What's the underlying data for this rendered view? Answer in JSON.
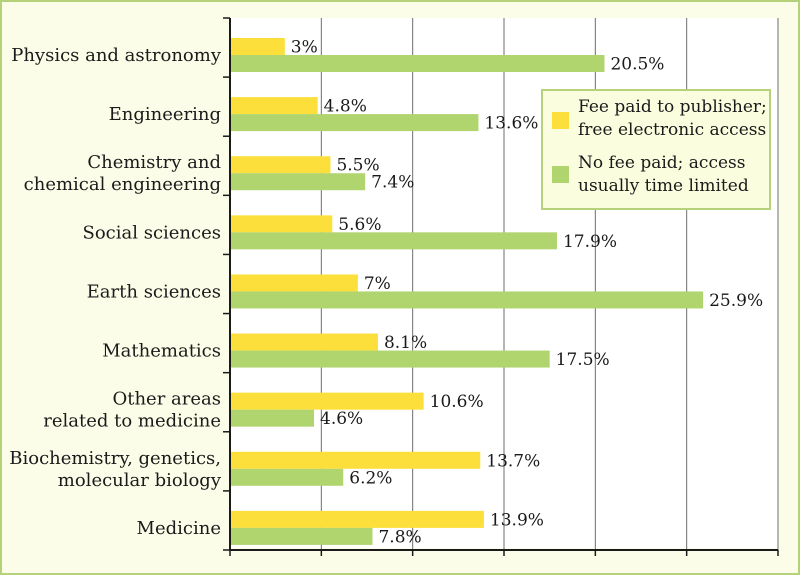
{
  "chart_data": {
    "type": "bar",
    "orientation": "horizontal",
    "title": "",
    "xlabel": "",
    "ylabel": "",
    "xlim": [
      0,
      30
    ],
    "grid": true,
    "value_suffix": "%",
    "categories": [
      [
        "Physics and astronomy"
      ],
      [
        "Engineering"
      ],
      [
        "Chemistry and",
        "chemical engineering"
      ],
      [
        "Social sciences"
      ],
      [
        "Earth sciences"
      ],
      [
        "Mathematics"
      ],
      [
        "Other areas",
        "related to medicine"
      ],
      [
        "Biochemistry, genetics,",
        "molecular biology"
      ],
      [
        "Medicine"
      ]
    ],
    "series": [
      {
        "name": "Fee paid to publisher; free electronic access",
        "legend_lines": [
          "Fee paid to publisher;",
          "free electronic access"
        ],
        "color": "#fcdf3a",
        "values": [
          3,
          4.8,
          5.5,
          5.6,
          7,
          8.1,
          10.6,
          13.7,
          13.9
        ],
        "labels": [
          "3%",
          "4.8%",
          "5.5%",
          "5.6%",
          "7%",
          "8.1%",
          "10.6%",
          "13.7%",
          "13.9%"
        ]
      },
      {
        "name": "No fee paid; access usually time limited",
        "legend_lines": [
          "No fee paid; access",
          "usually time limited"
        ],
        "color": "#b0d46e",
        "values": [
          20.5,
          13.6,
          7.4,
          17.9,
          25.9,
          17.5,
          4.6,
          6.2,
          7.8
        ],
        "labels": [
          "20.5%",
          "13.6%",
          "7.4%",
          "17.9%",
          "25.9%",
          "17.5%",
          "4.6%",
          "6.2%",
          "7.8%"
        ]
      }
    ],
    "legend_position": "top-right"
  }
}
